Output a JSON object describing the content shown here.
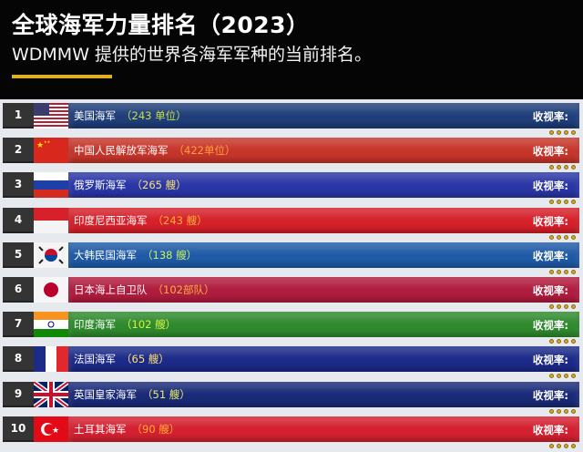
{
  "header": {
    "title": "全球海军力量排名（2023）",
    "subtitle": "WDMMW 提供的世界各海军军种的当前排名。",
    "accent_color": "#e0b020"
  },
  "rate_label": "收视率:",
  "rows": [
    {
      "rank": "1",
      "name": "美国海军",
      "count": "（243 单位）",
      "flag": "us-flag-icon",
      "bar_color": "#1f3e7a",
      "count_color": "#c8e040"
    },
    {
      "rank": "2",
      "name": "中国人民解放军海军",
      "count": "（422单位）",
      "flag": "china-flag-icon",
      "bar_color": "#c6352a",
      "count_color": "#ffa040"
    },
    {
      "rank": "3",
      "name": "俄罗斯海军",
      "count": "（265 艘）",
      "flag": "russia-flag-icon",
      "bar_color": "#2a36a6",
      "count_color": "#ffe070"
    },
    {
      "rank": "4",
      "name": "印度尼西亚海军",
      "count": "（243 艘）",
      "flag": "indonesia-flag-icon",
      "bar_color": "#d6202a",
      "count_color": "#ffb030"
    },
    {
      "rank": "5",
      "name": "大韩民国海军",
      "count": "（138 艘）",
      "flag": "korea-flag-icon",
      "bar_color": "#1f5aa6",
      "count_color": "#c8f060"
    },
    {
      "rank": "6",
      "name": "日本海上自卫队",
      "count": "（102部队）",
      "flag": "japan-flag-icon",
      "bar_color": "#b01c3e",
      "count_color": "#ffb040"
    },
    {
      "rank": "7",
      "name": "印度海军",
      "count": "（102 艘）",
      "flag": "india-flag-icon",
      "bar_color": "#2f8a2e",
      "count_color": "#d8f040"
    },
    {
      "rank": "8",
      "name": "法国海军",
      "count": "（65 艘）",
      "flag": "france-flag-icon",
      "bar_color": "#1c2a88",
      "count_color": "#ffe070"
    },
    {
      "rank": "9",
      "name": "英国皇家海军",
      "count": "（51 艘）",
      "flag": "uk-flag-icon",
      "bar_color": "#1a2a78",
      "count_color": "#e8f060"
    },
    {
      "rank": "10",
      "name": "土耳其海军",
      "count": "（90 艘）",
      "flag": "turkey-flag-icon",
      "bar_color": "#d42030",
      "count_color": "#ffb030"
    }
  ]
}
